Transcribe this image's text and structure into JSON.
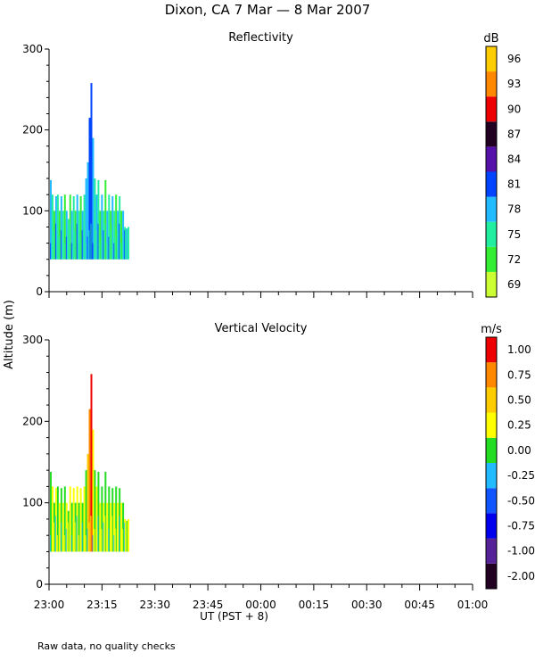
{
  "title": "Dixon, CA  7 Mar —  8 Mar 2007",
  "footnote": "Raw data, no quality checks",
  "shared_y_label": "Altitude (m)",
  "chart_data": [
    {
      "type": "heatmap",
      "title": "Reflectivity",
      "ylabel": "Altitude (m)",
      "ylim": [
        0,
        300
      ],
      "yticks": [
        0,
        100,
        200,
        300
      ],
      "x_range_minutes": [
        0,
        120
      ],
      "colorbar": {
        "unit": "dB",
        "labels": [
          "69",
          "72",
          "75",
          "78",
          "81",
          "84",
          "87",
          "90",
          "93",
          "96"
        ],
        "colors": [
          "#ccff33",
          "#33ee33",
          "#22eea0",
          "#22bbff",
          "#0044ff",
          "#5511aa",
          "#220022",
          "#ee0000",
          "#ff8800",
          "#ffcc00"
        ]
      },
      "columns": [
        {
          "t": 0.5,
          "top": 138,
          "dom": "#22bbff"
        },
        {
          "t": 1.0,
          "top": 120,
          "dom": "#22eea0"
        },
        {
          "t": 1.5,
          "top": 100,
          "dom": "#33ee33"
        },
        {
          "t": 2.0,
          "top": 118,
          "dom": "#22bbff"
        },
        {
          "t": 2.5,
          "top": 120,
          "dom": "#22eea0"
        },
        {
          "t": 3.0,
          "top": 100,
          "dom": "#33ee33"
        },
        {
          "t": 3.5,
          "top": 118,
          "dom": "#22bbff"
        },
        {
          "t": 4.0,
          "top": 100,
          "dom": "#22eea0"
        },
        {
          "t": 4.5,
          "top": 120,
          "dom": "#33ee33"
        },
        {
          "t": 5.0,
          "top": 100,
          "dom": "#22bbff"
        },
        {
          "t": 5.5,
          "top": 90,
          "dom": "#22eea0"
        },
        {
          "t": 6.0,
          "top": 120,
          "dom": "#33ee33"
        },
        {
          "t": 6.5,
          "top": 100,
          "dom": "#22bbff"
        },
        {
          "t": 7.0,
          "top": 118,
          "dom": "#22eea0"
        },
        {
          "t": 7.5,
          "top": 100,
          "dom": "#33ee33"
        },
        {
          "t": 8.0,
          "top": 120,
          "dom": "#22bbff"
        },
        {
          "t": 8.5,
          "top": 100,
          "dom": "#22eea0"
        },
        {
          "t": 9.0,
          "top": 118,
          "dom": "#33ee33"
        },
        {
          "t": 9.5,
          "top": 100,
          "dom": "#22bbff"
        },
        {
          "t": 10.0,
          "top": 120,
          "dom": "#22eea0"
        },
        {
          "t": 10.5,
          "top": 140,
          "dom": "#22bbff"
        },
        {
          "t": 11.0,
          "top": 160,
          "dom": "#22bbff"
        },
        {
          "t": 11.5,
          "top": 215,
          "dom": "#0044ff"
        },
        {
          "t": 12.0,
          "top": 258,
          "dom": "#0044ff"
        },
        {
          "t": 12.5,
          "top": 190,
          "dom": "#22bbff"
        },
        {
          "t": 13.0,
          "top": 140,
          "dom": "#22eea0"
        },
        {
          "t": 13.5,
          "top": 120,
          "dom": "#22bbff"
        },
        {
          "t": 14.0,
          "top": 138,
          "dom": "#22eea0"
        },
        {
          "t": 14.5,
          "top": 100,
          "dom": "#33ee33"
        },
        {
          "t": 15.0,
          "top": 120,
          "dom": "#22bbff"
        },
        {
          "t": 15.5,
          "top": 100,
          "dom": "#22eea0"
        },
        {
          "t": 16.0,
          "top": 138,
          "dom": "#33ee33"
        },
        {
          "t": 16.5,
          "top": 100,
          "dom": "#22bbff"
        },
        {
          "t": 17.0,
          "top": 120,
          "dom": "#22eea0"
        },
        {
          "t": 17.5,
          "top": 100,
          "dom": "#33ee33"
        },
        {
          "t": 18.0,
          "top": 118,
          "dom": "#22bbff"
        },
        {
          "t": 18.5,
          "top": 100,
          "dom": "#22eea0"
        },
        {
          "t": 19.0,
          "top": 120,
          "dom": "#33ee33"
        },
        {
          "t": 19.5,
          "top": 100,
          "dom": "#22bbff"
        },
        {
          "t": 20.0,
          "top": 118,
          "dom": "#22eea0"
        },
        {
          "t": 20.5,
          "top": 100,
          "dom": "#33ee33"
        },
        {
          "t": 21.0,
          "top": 100,
          "dom": "#22bbff"
        },
        {
          "t": 21.5,
          "top": 80,
          "dom": "#22eea0"
        },
        {
          "t": 22.0,
          "top": 78,
          "dom": "#22bbff"
        },
        {
          "t": 22.5,
          "top": 80,
          "dom": "#22eea0"
        }
      ]
    },
    {
      "type": "heatmap",
      "title": "Vertical Velocity",
      "ylabel": "Altitude (m)",
      "ylim": [
        0,
        300
      ],
      "yticks": [
        0,
        100,
        200,
        300
      ],
      "x_range_minutes": [
        0,
        120
      ],
      "xticks": [
        "23:00",
        "23:15",
        "23:30",
        "23:45",
        "00:00",
        "00:15",
        "00:30",
        "00:45",
        "01:00"
      ],
      "xlabel": "UT   (PST + 8)",
      "colorbar": {
        "unit": "m/s",
        "labels": [
          "-2.00",
          "-1.00",
          "-0.75",
          "-0.50",
          "-0.25",
          "0.00",
          "0.25",
          "0.50",
          "0.75",
          "1.00"
        ],
        "colors": [
          "#220022",
          "#552299",
          "#0000ee",
          "#1155ff",
          "#22bbff",
          "#22dd22",
          "#ffff00",
          "#ffcc00",
          "#ff8800",
          "#ee0000"
        ]
      },
      "columns": [
        {
          "t": 0.5,
          "top": 138,
          "dom": "#22dd22"
        },
        {
          "t": 1.0,
          "top": 120,
          "dom": "#ffff00"
        },
        {
          "t": 1.5,
          "top": 100,
          "dom": "#22dd22"
        },
        {
          "t": 2.0,
          "top": 118,
          "dom": "#ffff00"
        },
        {
          "t": 2.5,
          "top": 120,
          "dom": "#22dd22"
        },
        {
          "t": 3.0,
          "top": 100,
          "dom": "#ffff00"
        },
        {
          "t": 3.5,
          "top": 118,
          "dom": "#22dd22"
        },
        {
          "t": 4.0,
          "top": 100,
          "dom": "#ffff00"
        },
        {
          "t": 4.5,
          "top": 120,
          "dom": "#22dd22"
        },
        {
          "t": 5.0,
          "top": 100,
          "dom": "#ffff00"
        },
        {
          "t": 5.5,
          "top": 90,
          "dom": "#22dd22"
        },
        {
          "t": 6.0,
          "top": 120,
          "dom": "#ffff00"
        },
        {
          "t": 6.5,
          "top": 100,
          "dom": "#22dd22"
        },
        {
          "t": 7.0,
          "top": 118,
          "dom": "#ffff00"
        },
        {
          "t": 7.5,
          "top": 100,
          "dom": "#22dd22"
        },
        {
          "t": 8.0,
          "top": 120,
          "dom": "#ffff00"
        },
        {
          "t": 8.5,
          "top": 100,
          "dom": "#22dd22"
        },
        {
          "t": 9.0,
          "top": 118,
          "dom": "#ffff00"
        },
        {
          "t": 9.5,
          "top": 100,
          "dom": "#22dd22"
        },
        {
          "t": 10.0,
          "top": 120,
          "dom": "#ffff00"
        },
        {
          "t": 10.5,
          "top": 140,
          "dom": "#22dd22"
        },
        {
          "t": 11.0,
          "top": 160,
          "dom": "#ffcc00"
        },
        {
          "t": 11.5,
          "top": 215,
          "dom": "#ff8800"
        },
        {
          "t": 12.0,
          "top": 258,
          "dom": "#ee0000"
        },
        {
          "t": 12.5,
          "top": 190,
          "dom": "#ffff00"
        },
        {
          "t": 13.0,
          "top": 140,
          "dom": "#22dd22"
        },
        {
          "t": 13.5,
          "top": 120,
          "dom": "#ffff00"
        },
        {
          "t": 14.0,
          "top": 138,
          "dom": "#22dd22"
        },
        {
          "t": 14.5,
          "top": 100,
          "dom": "#ffff00"
        },
        {
          "t": 15.0,
          "top": 120,
          "dom": "#22dd22"
        },
        {
          "t": 15.5,
          "top": 100,
          "dom": "#ffff00"
        },
        {
          "t": 16.0,
          "top": 138,
          "dom": "#22dd22"
        },
        {
          "t": 16.5,
          "top": 100,
          "dom": "#ffff00"
        },
        {
          "t": 17.0,
          "top": 120,
          "dom": "#22dd22"
        },
        {
          "t": 17.5,
          "top": 100,
          "dom": "#ffff00"
        },
        {
          "t": 18.0,
          "top": 118,
          "dom": "#22dd22"
        },
        {
          "t": 18.5,
          "top": 100,
          "dom": "#ffff00"
        },
        {
          "t": 19.0,
          "top": 120,
          "dom": "#22dd22"
        },
        {
          "t": 19.5,
          "top": 100,
          "dom": "#ffff00"
        },
        {
          "t": 20.0,
          "top": 118,
          "dom": "#22dd22"
        },
        {
          "t": 20.5,
          "top": 100,
          "dom": "#ffff00"
        },
        {
          "t": 21.0,
          "top": 100,
          "dom": "#22dd22"
        },
        {
          "t": 21.5,
          "top": 80,
          "dom": "#ffff00"
        },
        {
          "t": 22.0,
          "top": 78,
          "dom": "#22dd22"
        },
        {
          "t": 22.5,
          "top": 80,
          "dom": "#ffff00"
        }
      ]
    }
  ]
}
